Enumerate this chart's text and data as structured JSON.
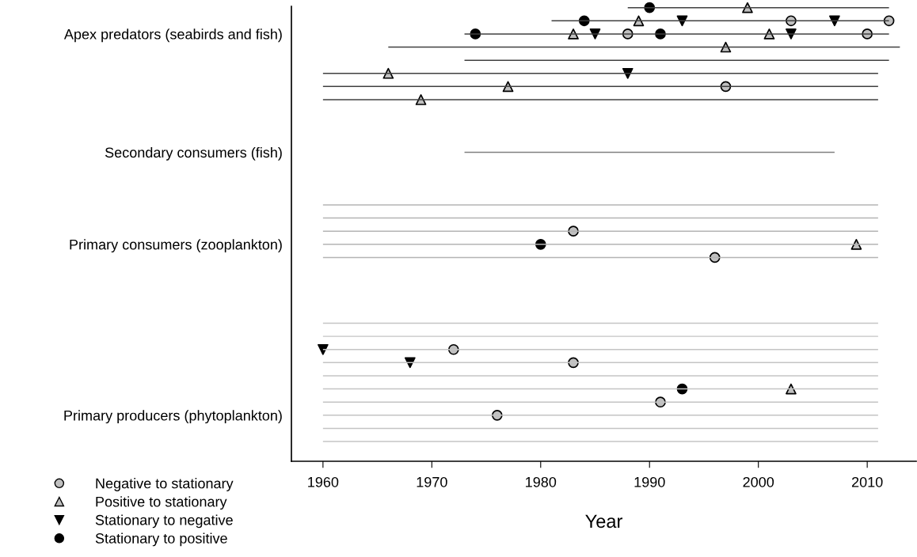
{
  "chart_data": {
    "type": "bar",
    "orientation": "horizontal",
    "xlabel": "Year",
    "xlim": [
      1957.1,
      2014.5
    ],
    "xticks": [
      1960,
      1970,
      1980,
      1990,
      2000,
      2010
    ],
    "categories": [
      null,
      null,
      "Apex predators (seabirds and fish)",
      null,
      null,
      null,
      null,
      null,
      null,
      null,
      null,
      "Secondary consumers (fish)",
      null,
      null,
      null,
      null,
      null,
      null,
      "Primary consumers (zooplankton)",
      null,
      null,
      null,
      null,
      null,
      null,
      null,
      null,
      null,
      null,
      null,
      null,
      "Primary producers (phytoplankton)",
      null,
      null,
      null
    ],
    "base": [
      1988,
      1981,
      1973,
      1966,
      1973,
      1960,
      1960,
      1960,
      null,
      null,
      null,
      1973,
      null,
      null,
      null,
      1960,
      1960,
      1960,
      1960,
      1960,
      null,
      null,
      null,
      null,
      1960,
      1960,
      1960,
      1960,
      1960,
      1960,
      1960,
      1960,
      1960,
      1960,
      null
    ],
    "values": [
      24,
      31,
      39,
      47,
      39,
      51,
      51,
      51,
      null,
      null,
      null,
      34,
      null,
      null,
      null,
      51,
      51,
      51,
      51,
      51,
      null,
      null,
      null,
      null,
      51,
      51,
      51,
      51,
      51,
      51,
      51,
      51,
      51,
      51,
      null
    ],
    "colors": [
      "#404040",
      "#404040",
      "#404040",
      "#404040",
      "#404040",
      "#404040",
      "#404040",
      "#404040",
      null,
      null,
      null,
      "#808080",
      null,
      null,
      null,
      "#b4b4b4",
      "#b4b4b4",
      "#b4b4b4",
      "#b4b4b4",
      "#b4b4b4",
      null,
      null,
      null,
      null,
      "#c4c4c4",
      "#c4c4c4",
      "#c4c4c4",
      "#c4c4c4",
      "#c4c4c4",
      "#c4c4c4",
      "#c4c4c4",
      "#c4c4c4",
      "#c4c4c4",
      "#c4c4c4",
      null
    ],
    "grid": false,
    "legend": "bottom left",
    "series": [
      {
        "type": "scatter",
        "name": "Negative to stationary",
        "color": "#c0c0c0",
        "marker": "circle",
        "values": [
          null,
          2003,
          1988,
          null,
          null,
          null,
          1997,
          null,
          null,
          null,
          null,
          null,
          null,
          null,
          null,
          null,
          null,
          1983,
          null,
          1996,
          null,
          null,
          null,
          null,
          null,
          null,
          1972,
          1983,
          null,
          null,
          1991,
          1976,
          null,
          null,
          null
        ]
      },
      {
        "type": "scatter",
        "color": "#c0c0c0",
        "marker": "circle",
        "values": [
          null,
          2012,
          2010,
          null,
          null,
          null,
          null,
          null,
          null,
          null,
          null,
          null,
          null,
          null,
          null,
          null,
          null,
          null,
          null,
          null,
          null,
          null,
          null,
          null,
          null,
          null,
          null,
          null,
          null,
          null,
          null,
          null,
          null,
          null,
          null
        ]
      },
      {
        "type": "scatter",
        "name": "Positive to stationary",
        "color": "#c0c0c0",
        "marker": "triangle",
        "values": [
          1999,
          1989,
          1983,
          1997,
          null,
          1966,
          1977,
          1969,
          null,
          null,
          null,
          null,
          null,
          null,
          null,
          null,
          null,
          null,
          2009,
          null,
          null,
          null,
          null,
          null,
          null,
          null,
          null,
          null,
          null,
          2003,
          null,
          null,
          null,
          null,
          null
        ]
      },
      {
        "type": "scatter",
        "color": "#c0c0c0",
        "marker": "triangle",
        "values": [
          null,
          null,
          2001,
          null,
          null,
          null,
          null,
          null,
          null,
          null,
          null,
          null,
          null,
          null,
          null,
          null,
          null,
          null,
          null,
          null,
          null,
          null,
          null,
          null,
          null,
          null,
          null,
          null,
          null,
          null,
          null,
          null,
          null,
          null,
          null
        ]
      },
      {
        "type": "scatter",
        "name": "Stationary to negative",
        "color": "#000000",
        "marker": "triangle_down",
        "values": [
          null,
          1993,
          1985,
          null,
          null,
          1988,
          null,
          null,
          null,
          null,
          null,
          null,
          null,
          null,
          null,
          null,
          null,
          null,
          null,
          null,
          null,
          null,
          null,
          null,
          null,
          null,
          1960,
          1968,
          null,
          null,
          null,
          null,
          null,
          null,
          null
        ]
      },
      {
        "type": "scatter",
        "color": "#000000",
        "marker": "triangle_down",
        "values": [
          null,
          2007,
          2003,
          null,
          null,
          null,
          null,
          null,
          null,
          null,
          null,
          null,
          null,
          null,
          null,
          null,
          null,
          null,
          null,
          null,
          null,
          null,
          null,
          null,
          null,
          null,
          null,
          null,
          null,
          null,
          null,
          null,
          null,
          null,
          null
        ]
      },
      {
        "type": "scatter",
        "name": "Stationary to positive",
        "color": "#000000",
        "marker": "circle",
        "values": [
          1990,
          1984,
          1974,
          null,
          null,
          null,
          null,
          null,
          null,
          null,
          null,
          null,
          null,
          null,
          null,
          null,
          null,
          null,
          1980,
          null,
          null,
          null,
          null,
          null,
          null,
          null,
          null,
          null,
          null,
          1993,
          null,
          null,
          null,
          null,
          null
        ]
      },
      {
        "type": "scatter",
        "color": "#000000",
        "marker": "circle",
        "values": [
          null,
          null,
          1991,
          null,
          null,
          null,
          null,
          null,
          null,
          null,
          null,
          null,
          null,
          null,
          null,
          null,
          null,
          null,
          null,
          null,
          null,
          null,
          null,
          null,
          null,
          null,
          null,
          null,
          null,
          null,
          null,
          null,
          null,
          null,
          null
        ]
      }
    ]
  }
}
